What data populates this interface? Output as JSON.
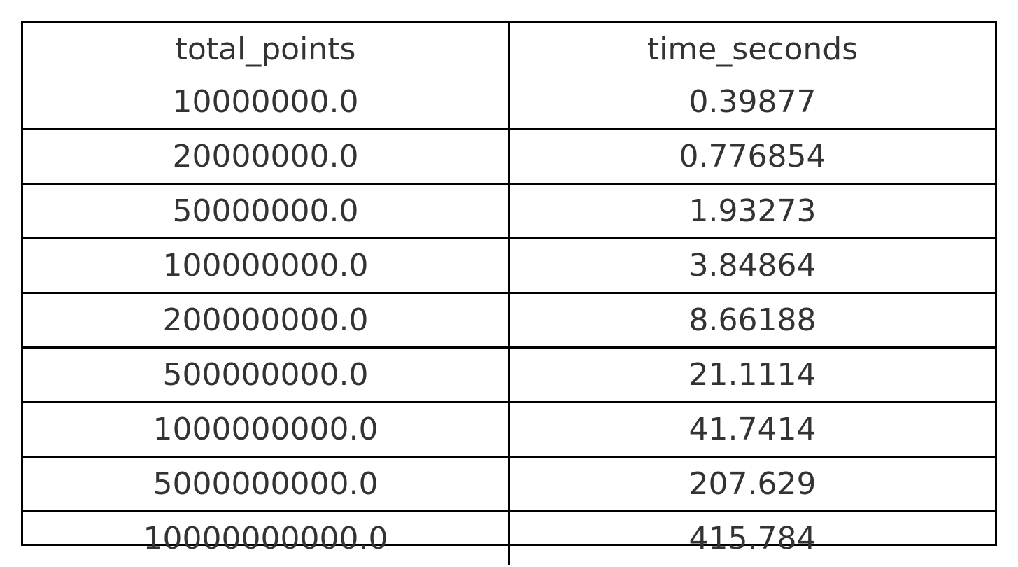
{
  "chart_data": {
    "type": "table",
    "columns": [
      "total_points",
      "time_seconds"
    ],
    "rows": [
      [
        "10000000.0",
        "0.39877"
      ],
      [
        "20000000.0",
        "0.776854"
      ],
      [
        "50000000.0",
        "1.93273"
      ],
      [
        "100000000.0",
        "3.84864"
      ],
      [
        "200000000.0",
        "8.66188"
      ],
      [
        "500000000.0",
        "21.1114"
      ],
      [
        "1000000000.0",
        "41.7414"
      ],
      [
        "5000000000.0",
        "207.629"
      ],
      [
        "10000000000.0",
        "415.784"
      ]
    ]
  }
}
